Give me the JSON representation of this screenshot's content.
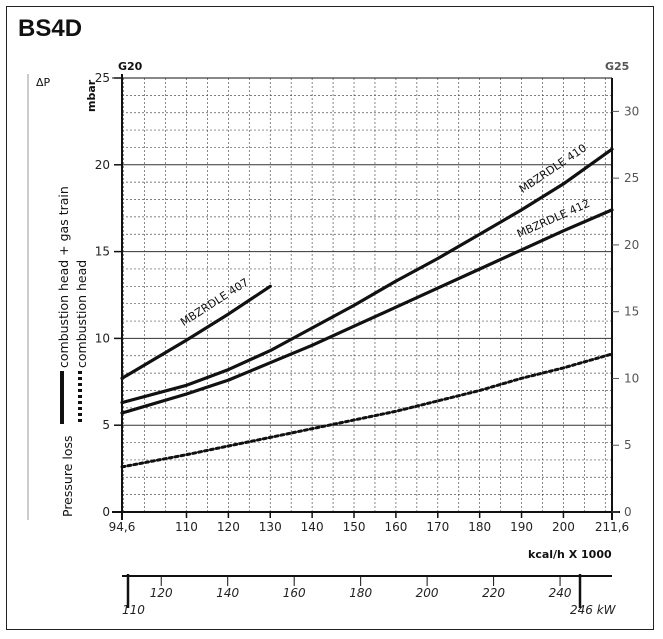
{
  "title": "BS4D",
  "chart_data": {
    "type": "line",
    "xlabel": "kcal/h X 1000",
    "ylabel": "mbar",
    "y_axis_symbol": "ΔP",
    "left_gas": "G20",
    "right_gas": "G25",
    "xlim": [
      94.6,
      211.6
    ],
    "ylim": [
      0,
      25
    ],
    "x_ticks": [
      "94,6",
      "110",
      "120",
      "130",
      "140",
      "150",
      "160",
      "170",
      "180",
      "190",
      "200",
      "211,6"
    ],
    "x_tick_values": [
      94.6,
      110,
      120,
      130,
      140,
      150,
      160,
      170,
      180,
      190,
      200,
      211.6
    ],
    "y_ticks": [
      "0",
      "5",
      "10",
      "15",
      "20",
      "25"
    ],
    "y_tick_values": [
      0,
      5,
      10,
      15,
      20,
      25
    ],
    "y2_ticks": [
      "0",
      "5",
      "10",
      "15",
      "20",
      "25",
      "30"
    ],
    "y2_tick_values": [
      0,
      5,
      10,
      15,
      20,
      25,
      30
    ],
    "y2lim": [
      0,
      32.5
    ],
    "kw_ticks": [
      "110",
      "120",
      "140",
      "160",
      "180",
      "200",
      "220",
      "240",
      "246 kW"
    ],
    "kw_tick_values": [
      110,
      120,
      140,
      160,
      180,
      200,
      220,
      240,
      246
    ],
    "kwlim": [
      110,
      246
    ],
    "grid": true,
    "legend": {
      "prefix": "Pressure loss",
      "solid_label": "combustion head + gas train",
      "dashed_label": "combustion head"
    },
    "series": [
      {
        "name": "MBZRDLE 407",
        "style": "solid",
        "x": [
          94.6,
          110,
          120,
          130
        ],
        "y": [
          7.7,
          9.9,
          11.4,
          13.0
        ]
      },
      {
        "name": "MBZRDLE 410",
        "style": "solid",
        "x": [
          94.6,
          110,
          120,
          130,
          140,
          150,
          160,
          170,
          180,
          190,
          200,
          211.6
        ],
        "y": [
          6.3,
          7.3,
          8.2,
          9.3,
          10.6,
          11.9,
          13.3,
          14.6,
          16.0,
          17.4,
          18.9,
          20.9
        ]
      },
      {
        "name": "MBZRDLE 412",
        "style": "solid",
        "x": [
          94.6,
          110,
          120,
          130,
          140,
          150,
          160,
          170,
          180,
          190,
          200,
          211.6
        ],
        "y": [
          5.7,
          6.8,
          7.6,
          8.6,
          9.6,
          10.7,
          11.8,
          12.9,
          14.0,
          15.1,
          16.2,
          17.4
        ]
      },
      {
        "name": "combustion head",
        "style": "dashed",
        "x": [
          94.6,
          110,
          120,
          130,
          140,
          150,
          160,
          170,
          180,
          190,
          200,
          211.6
        ],
        "y": [
          2.6,
          3.3,
          3.8,
          4.3,
          4.8,
          5.3,
          5.8,
          6.4,
          7.0,
          7.7,
          8.3,
          9.1
        ]
      }
    ]
  }
}
